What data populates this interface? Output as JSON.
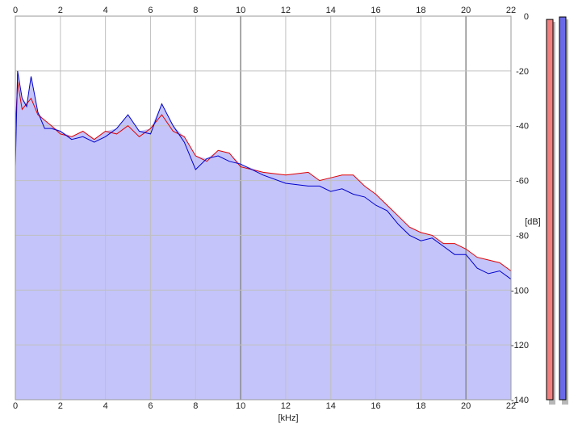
{
  "chart_data": {
    "type": "area",
    "title": "",
    "xlabel": "[kHz]",
    "ylabel": "[dB]",
    "xlim": [
      0,
      22
    ],
    "ylim": [
      -140,
      0
    ],
    "x_ticks": [
      "0",
      "2",
      "4",
      "6",
      "8",
      "10",
      "12",
      "14",
      "16",
      "18",
      "20",
      "22"
    ],
    "y_ticks": [
      "0",
      "-20",
      "-40",
      "-60",
      "-80",
      "-100",
      "-120",
      "-140"
    ],
    "grid": true,
    "colors": {
      "fill": "#c4c4fa",
      "red": "#e00000",
      "blue": "#0000cc",
      "grid": "#c0c0c0",
      "major_grid": "#8a8a8a"
    },
    "series": [
      {
        "color": "#e00000",
        "x": [
          0.0,
          0.1,
          0.3,
          0.5,
          0.7,
          1.0,
          1.3,
          1.6,
          2.0,
          2.5,
          3.0,
          3.5,
          4.0,
          4.5,
          5.0,
          5.5,
          6.0,
          6.5,
          7.0,
          7.5,
          8.0,
          8.5,
          9.0,
          9.5,
          10.0,
          11.0,
          12.0,
          13.0,
          13.5,
          14.0,
          14.5,
          15.0,
          15.5,
          16.0,
          16.5,
          17.0,
          17.5,
          18.0,
          18.5,
          19.0,
          19.5,
          20.0,
          20.5,
          21.0,
          21.5,
          22.0
        ],
        "values": [
          -42,
          -24,
          -34,
          -32,
          -30,
          -36,
          -38,
          -40,
          -43,
          -44,
          -42,
          -45,
          -42,
          -43,
          -40,
          -44,
          -41,
          -36,
          -42,
          -44,
          -51,
          -53,
          -49,
          -50,
          -55,
          -57,
          -58,
          -57,
          -60,
          -59,
          -58,
          -58,
          -62,
          -65,
          -69,
          -73,
          -77,
          -79,
          -80,
          -83,
          -83,
          -85,
          -88,
          -89,
          -90,
          -93
        ]
      },
      {
        "color": "#0000cc",
        "x": [
          0.0,
          0.1,
          0.3,
          0.5,
          0.7,
          1.0,
          1.3,
          1.6,
          2.0,
          2.5,
          3.0,
          3.5,
          4.0,
          4.5,
          5.0,
          5.5,
          6.0,
          6.5,
          7.0,
          7.5,
          8.0,
          8.5,
          9.0,
          9.5,
          10.0,
          11.0,
          12.0,
          13.0,
          13.5,
          14.0,
          14.5,
          15.0,
          15.5,
          16.0,
          16.5,
          17.0,
          17.5,
          18.0,
          18.5,
          19.0,
          19.5,
          20.0,
          20.5,
          21.0,
          21.5,
          22.0
        ],
        "values": [
          -55,
          -20,
          -30,
          -33,
          -22,
          -35,
          -41,
          -41,
          -42,
          -45,
          -44,
          -46,
          -44,
          -41,
          -36,
          -42,
          -43,
          -32,
          -40,
          -46,
          -56,
          -52,
          -51,
          -53,
          -54,
          -58,
          -61,
          -62,
          -62,
          -64,
          -63,
          -65,
          -66,
          -69,
          -71,
          -76,
          -80,
          -82,
          -81,
          -84,
          -87,
          -87,
          -92,
          -94,
          -93,
          -96
        ]
      }
    ],
    "level_meters": [
      {
        "color": "#f08080",
        "level": -1.2
      },
      {
        "color": "#6a6ae8",
        "level": -0.3
      }
    ]
  }
}
